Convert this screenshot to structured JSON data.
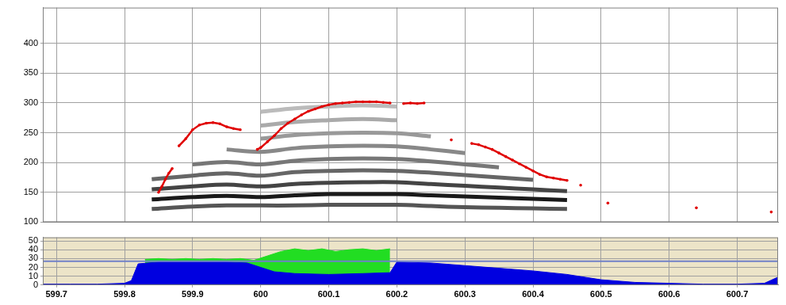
{
  "chart_data": [
    {
      "type": "line",
      "xlim": [
        599.68,
        600.76
      ],
      "xticks": [
        599.7,
        599.8,
        599.9,
        600,
        600.1,
        600.2,
        600.3,
        600.4,
        600.5,
        600.6,
        600.7
      ],
      "ylim": [
        100,
        460
      ],
      "yticks": [
        100,
        150,
        200,
        250,
        300,
        350,
        400
      ],
      "grid": true,
      "tick_labels": "y",
      "spectrogram": {
        "x": [
          599.84,
          599.9,
          599.95,
          600.0,
          600.05,
          600.1,
          600.15,
          600.2,
          600.25,
          600.3,
          600.35,
          600.4,
          600.45
        ],
        "bands": [
          {
            "color": "#555555",
            "values": [
              122,
              126,
              128,
              128,
              128,
              129,
              129,
              129,
              127,
              125,
              124,
              123,
              122
            ]
          },
          {
            "color": "#1a1a1a",
            "values": [
              138,
              142,
              144,
              142,
              145,
              147,
              147,
              147,
              145,
              143,
              141,
              139,
              137
            ]
          },
          {
            "color": "#444444",
            "values": [
              155,
              160,
              163,
              160,
              164,
              166,
              167,
              167,
              164,
              161,
              158,
              155,
              152
            ]
          },
          {
            "color": "#666666",
            "values": [
              172,
              178,
              182,
              178,
              184,
              186,
              187,
              186,
              183,
              179,
              175,
              171,
              null
            ]
          },
          {
            "color": "#777777",
            "values": [
              null,
              197,
              201,
              197,
              203,
              206,
              207,
              206,
              202,
              197,
              192,
              null,
              null
            ]
          },
          {
            "color": "#888888",
            "values": [
              null,
              null,
              222,
              218,
              224,
              227,
              228,
              227,
              222,
              216,
              null,
              null,
              null
            ]
          },
          {
            "color": "#999999",
            "values": [
              null,
              null,
              null,
              240,
              246,
              249,
              250,
              249,
              244,
              null,
              null,
              null,
              null
            ]
          },
          {
            "color": "#aaaaaa",
            "values": [
              null,
              null,
              null,
              262,
              268,
              271,
              273,
              271,
              null,
              null,
              null,
              null,
              null
            ]
          },
          {
            "color": "#bbbbbb",
            "values": [
              null,
              null,
              null,
              285,
              291,
              294,
              296,
              294,
              null,
              null,
              null,
              null,
              null
            ]
          }
        ]
      },
      "series": [
        {
          "color": "#e00000",
          "marker": "circle",
          "line_style": "solid",
          "x": [
            599.85,
            599.855,
            599.86,
            599.865,
            599.87,
            599.875,
            599.88,
            599.89,
            599.9,
            599.91,
            599.92,
            599.93,
            599.94,
            599.95,
            599.96,
            599.97,
            599.985,
            599.995,
            600.0,
            600.01,
            600.02,
            600.03,
            600.04,
            600.05,
            600.06,
            600.07,
            600.08,
            600.09,
            600.1,
            600.11,
            600.12,
            600.13,
            600.14,
            600.15,
            600.16,
            600.17,
            600.18,
            600.19,
            600.2,
            600.21,
            600.22,
            600.23,
            600.24,
            600.25,
            600.28,
            600.29,
            600.31,
            600.32,
            600.33,
            600.34,
            600.35,
            600.36,
            600.37,
            600.38,
            600.39,
            600.4,
            600.41,
            600.42,
            600.43,
            600.44,
            600.45,
            600.46,
            600.47,
            600.49,
            600.51,
            600.52,
            600.64,
            600.66,
            600.75
          ],
          "values": [
            150,
            160,
            172,
            182,
            190,
            null,
            228,
            240,
            255,
            263,
            266,
            267,
            265,
            260,
            257,
            255,
            null,
            222,
            225,
            235,
            245,
            257,
            266,
            273,
            280,
            286,
            290,
            294,
            297,
            299,
            300,
            301,
            302,
            302,
            302,
            302,
            301,
            300,
            null,
            299,
            300,
            299,
            300,
            null,
            238,
            null,
            232,
            230,
            226,
            222,
            216,
            210,
            204,
            198,
            192,
            186,
            180,
            176,
            174,
            172,
            170,
            null,
            162,
            null,
            132,
            null,
            124,
            null,
            117
          ]
        }
      ]
    },
    {
      "type": "line",
      "xlim": [
        599.68,
        600.76
      ],
      "xticks": [
        599.7,
        599.8,
        599.9,
        600,
        600.1,
        600.2,
        600.3,
        600.4,
        600.5,
        600.6,
        600.7
      ],
      "ylim": [
        0,
        54
      ],
      "yticks": [
        0,
        10,
        20,
        30,
        40,
        50
      ],
      "grid": true,
      "reference_line": {
        "value": 27,
        "color": "#7080c8"
      },
      "series": [
        {
          "type": "area",
          "color": "#0000e0",
          "x": [
            599.68,
            599.72,
            599.76,
            599.8,
            599.81,
            599.82,
            599.85,
            599.9,
            599.95,
            599.98,
            600.0,
            600.02,
            600.05,
            600.1,
            600.15,
            600.19,
            600.2,
            600.25,
            600.3,
            600.35,
            600.4,
            600.45,
            600.5,
            600.55,
            600.6,
            600.65,
            600.7,
            600.74,
            600.76
          ],
          "values": [
            1,
            1,
            1,
            2,
            5,
            24,
            26,
            26,
            26,
            25,
            20,
            15,
            13,
            12,
            13,
            14,
            26,
            25,
            22,
            19,
            16,
            12,
            6,
            3,
            2,
            1,
            1,
            2,
            9
          ]
        },
        {
          "type": "area",
          "color": "#22dd22",
          "x": [
            599.83,
            599.85,
            599.87,
            599.89,
            599.91,
            599.93,
            599.95,
            599.97,
            599.99,
            600.01,
            600.03,
            600.05,
            600.07,
            600.09,
            600.11,
            600.13,
            600.15,
            600.17,
            600.19
          ],
          "values": [
            29,
            30,
            29,
            30,
            29,
            30,
            29,
            30,
            28,
            33,
            38,
            41,
            39,
            41,
            38,
            40,
            41,
            39,
            41
          ]
        }
      ]
    }
  ]
}
